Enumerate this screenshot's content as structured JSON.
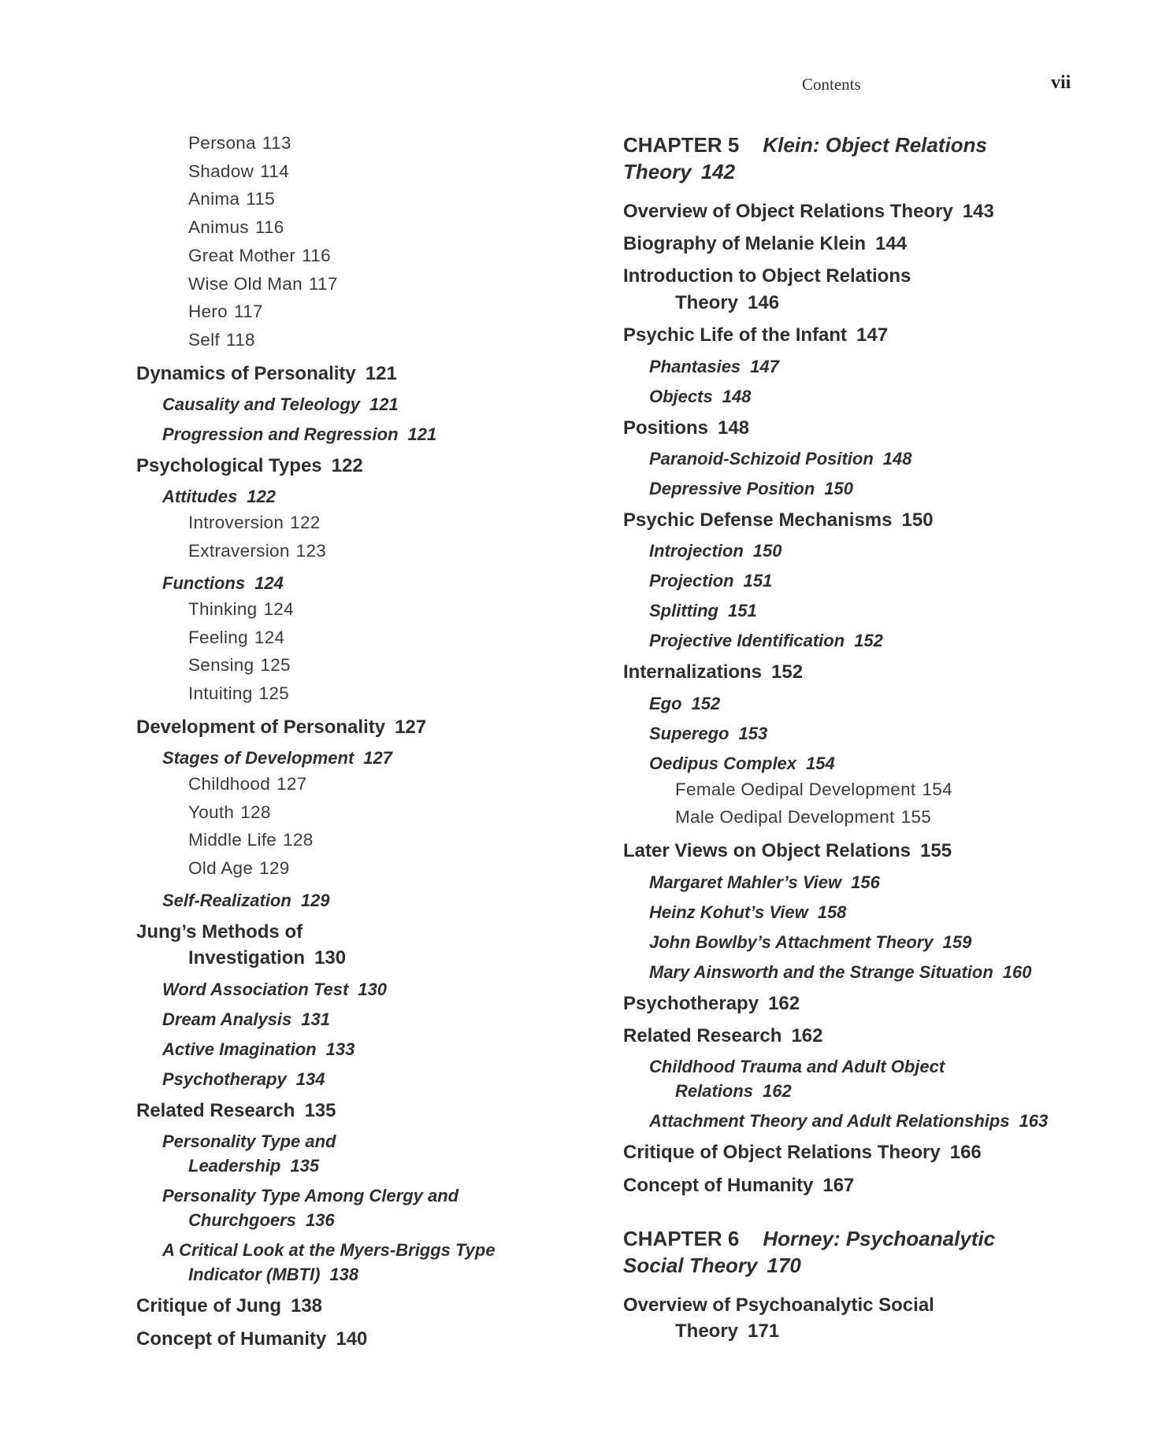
{
  "header": {
    "running_title": "Contents",
    "page_number": "vii"
  },
  "left_column": [
    {
      "level": 3,
      "lines": [
        "Persona"
      ],
      "page": "113"
    },
    {
      "level": 3,
      "lines": [
        "Shadow"
      ],
      "page": "114"
    },
    {
      "level": 3,
      "lines": [
        "Anima"
      ],
      "page": "115"
    },
    {
      "level": 3,
      "lines": [
        "Animus"
      ],
      "page": "116"
    },
    {
      "level": 3,
      "lines": [
        "Great Mother"
      ],
      "page": "116"
    },
    {
      "level": 3,
      "lines": [
        "Wise Old Man"
      ],
      "page": "117"
    },
    {
      "level": 3,
      "lines": [
        "Hero"
      ],
      "page": "117"
    },
    {
      "level": 3,
      "lines": [
        "Self"
      ],
      "page": "118"
    },
    {
      "level": 1,
      "lines": [
        "Dynamics of Personality"
      ],
      "page": "121"
    },
    {
      "level": 2,
      "lines": [
        "Causality and Teleology"
      ],
      "page": "121"
    },
    {
      "level": 2,
      "lines": [
        "Progression and Regression"
      ],
      "page": "121"
    },
    {
      "level": 1,
      "lines": [
        "Psychological Types"
      ],
      "page": "122"
    },
    {
      "level": 2,
      "lines": [
        "Attitudes"
      ],
      "page": "122"
    },
    {
      "level": 3,
      "lines": [
        "Introversion"
      ],
      "page": "122"
    },
    {
      "level": 3,
      "lines": [
        "Extraversion"
      ],
      "page": "123"
    },
    {
      "level": 2,
      "lines": [
        "Functions"
      ],
      "page": "124"
    },
    {
      "level": 3,
      "lines": [
        "Thinking"
      ],
      "page": "124"
    },
    {
      "level": 3,
      "lines": [
        "Feeling"
      ],
      "page": "124"
    },
    {
      "level": 3,
      "lines": [
        "Sensing"
      ],
      "page": "125"
    },
    {
      "level": 3,
      "lines": [
        "Intuiting"
      ],
      "page": "125"
    },
    {
      "level": 1,
      "lines": [
        "Development of Personality"
      ],
      "page": "127"
    },
    {
      "level": 2,
      "lines": [
        "Stages of Development"
      ],
      "page": "127"
    },
    {
      "level": 3,
      "lines": [
        "Childhood"
      ],
      "page": "127"
    },
    {
      "level": 3,
      "lines": [
        "Youth"
      ],
      "page": "128"
    },
    {
      "level": 3,
      "lines": [
        "Middle Life"
      ],
      "page": "128"
    },
    {
      "level": 3,
      "lines": [
        "Old Age"
      ],
      "page": "129"
    },
    {
      "level": 2,
      "lines": [
        "Self-Realization"
      ],
      "page": "129"
    },
    {
      "level": 1,
      "lines": [
        "Jung’s Methods of",
        "Investigation"
      ],
      "page": "130"
    },
    {
      "level": 2,
      "lines": [
        "Word Association Test"
      ],
      "page": "130"
    },
    {
      "level": 2,
      "lines": [
        "Dream Analysis"
      ],
      "page": "131"
    },
    {
      "level": 2,
      "lines": [
        "Active Imagination"
      ],
      "page": "133"
    },
    {
      "level": 2,
      "lines": [
        "Psychotherapy"
      ],
      "page": "134"
    },
    {
      "level": 1,
      "lines": [
        "Related Research"
      ],
      "page": "135"
    },
    {
      "level": 2,
      "lines": [
        "Personality Type and",
        "Leadership"
      ],
      "page": "135"
    },
    {
      "level": 2,
      "lines": [
        "Personality Type Among Clergy and",
        "Churchgoers"
      ],
      "page": "136"
    },
    {
      "level": 2,
      "lines": [
        "A Critical Look at the Myers-Briggs Type",
        "Indicator (MBTI)"
      ],
      "page": "138"
    },
    {
      "level": 1,
      "lines": [
        "Critique of Jung"
      ],
      "page": "138"
    },
    {
      "level": 1,
      "lines": [
        "Concept of Humanity"
      ],
      "page": "140"
    }
  ],
  "right_column": [
    {
      "level": 0,
      "chapter": "CHAPTER 5",
      "lines": [
        "Klein: Object Relations",
        "Theory"
      ],
      "page": "142"
    },
    {
      "level": 1,
      "lines": [
        "Overview of Object Relations Theory"
      ],
      "page": "143"
    },
    {
      "level": 1,
      "lines": [
        "Biography of Melanie Klein"
      ],
      "page": "144"
    },
    {
      "level": 1,
      "lines": [
        "Introduction to Object Relations",
        "Theory"
      ],
      "page": "146"
    },
    {
      "level": 1,
      "lines": [
        "Psychic Life of the Infant"
      ],
      "page": "147"
    },
    {
      "level": 2,
      "lines": [
        "Phantasies"
      ],
      "page": "147"
    },
    {
      "level": 2,
      "lines": [
        "Objects"
      ],
      "page": "148"
    },
    {
      "level": 1,
      "lines": [
        "Positions"
      ],
      "page": "148"
    },
    {
      "level": 2,
      "lines": [
        "Paranoid-Schizoid Position"
      ],
      "page": "148"
    },
    {
      "level": 2,
      "lines": [
        "Depressive Position"
      ],
      "page": "150"
    },
    {
      "level": 1,
      "lines": [
        "Psychic Defense Mechanisms"
      ],
      "page": "150"
    },
    {
      "level": 2,
      "lines": [
        "Introjection"
      ],
      "page": "150"
    },
    {
      "level": 2,
      "lines": [
        "Projection"
      ],
      "page": "151"
    },
    {
      "level": 2,
      "lines": [
        "Splitting"
      ],
      "page": "151"
    },
    {
      "level": 2,
      "lines": [
        "Projective Identification"
      ],
      "page": "152"
    },
    {
      "level": 1,
      "lines": [
        "Internalizations"
      ],
      "page": "152"
    },
    {
      "level": 2,
      "lines": [
        "Ego"
      ],
      "page": "152"
    },
    {
      "level": 2,
      "lines": [
        "Superego"
      ],
      "page": "153"
    },
    {
      "level": 2,
      "lines": [
        "Oedipus Complex"
      ],
      "page": "154"
    },
    {
      "level": 3,
      "lines": [
        "Female Oedipal Development"
      ],
      "page": "154"
    },
    {
      "level": 3,
      "lines": [
        "Male Oedipal Development"
      ],
      "page": "155"
    },
    {
      "level": 1,
      "lines": [
        "Later Views on Object Relations"
      ],
      "page": "155"
    },
    {
      "level": 2,
      "lines": [
        "Margaret Mahler’s View"
      ],
      "page": "156"
    },
    {
      "level": 2,
      "lines": [
        "Heinz Kohut’s View"
      ],
      "page": "158"
    },
    {
      "level": 2,
      "lines": [
        "John Bowlby’s Attachment Theory"
      ],
      "page": "159"
    },
    {
      "level": 2,
      "lines": [
        "Mary Ainsworth and the Strange Situation"
      ],
      "page": "160"
    },
    {
      "level": 1,
      "lines": [
        "Psychotherapy"
      ],
      "page": "162"
    },
    {
      "level": 1,
      "lines": [
        "Related Research"
      ],
      "page": "162"
    },
    {
      "level": 2,
      "lines": [
        "Childhood Trauma and Adult Object",
        "Relations"
      ],
      "page": "162"
    },
    {
      "level": 2,
      "lines": [
        "Attachment Theory and Adult Relationships"
      ],
      "page": "163"
    },
    {
      "level": 1,
      "lines": [
        "Critique of Object Relations Theory"
      ],
      "page": "166"
    },
    {
      "level": 1,
      "lines": [
        "Concept of Humanity"
      ],
      "page": "167"
    },
    {
      "level": 0,
      "chapter": "CHAPTER 6",
      "lines": [
        "Horney: Psychoanalytic",
        "Social Theory"
      ],
      "page": "170"
    },
    {
      "level": 1,
      "lines": [
        "Overview of Psychoanalytic Social",
        "Theory"
      ],
      "page": "171"
    }
  ]
}
